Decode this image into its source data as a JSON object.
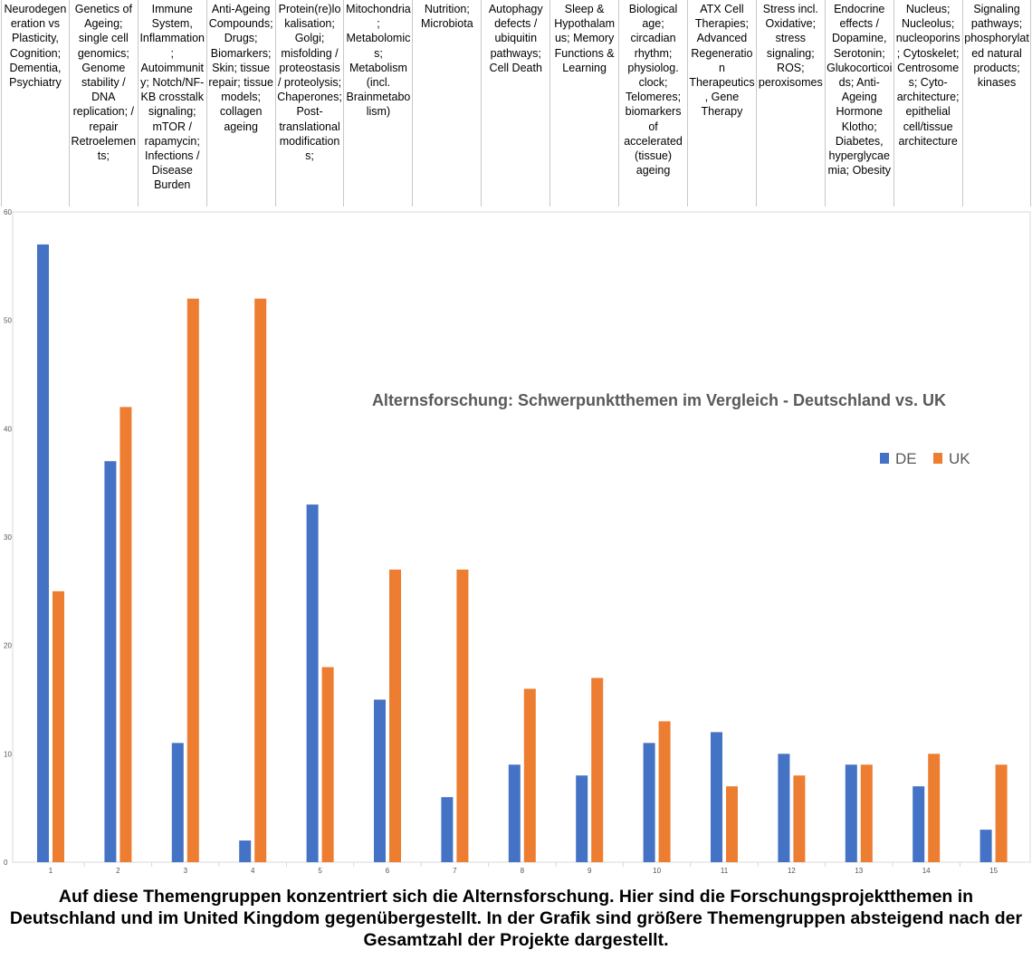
{
  "topics": [
    "Neurodegeneration vs Plasticity, Cognition; Dementia, Psychiatry",
    "Genetics of Ageing; single cell genomics; Genome stability / DNA replication; / repair Retroelements;",
    "Immune System, Inflammation; Autoimmunity; Notch/NF-KB crosstalk signaling; mTOR / rapamycin; Infections / Disease Burden",
    "Anti-Ageing Compounds; Drugs; Biomarkers; Skin; tissue repair; tissue models; collagen ageing",
    "Protein(re)lokalisation; Golgi; misfolding / proteostasis / proteolysis; Chaperones; Post-translational modifications;",
    "Mitochondria; Metabolomics; Metabolism (incl. Brainmetabolism)",
    "Nutrition; Microbiota",
    "Autophagy defects / ubiquitin pathways; Cell Death",
    "Sleep & Hypothalamus; Memory Functions & Learning",
    "Biological age; circadian rhythm; physiolog. clock; Telomeres; biomarkers of accelerated (tissue) ageing",
    "ATX Cell Therapies; Advanced Regeneration Therapeutics, Gene Therapy",
    "Stress incl. Oxidative; stress signaling; ROS; peroxisomes",
    "Endocrine effects / Dopamine, Serotonin; Glukocorticoids; Anti-Ageing Hormone Klotho; Diabetes, hyperglycaemia; Obesity",
    "Nucleus; Nucleolus; nucleoporins; Cytoskelet; Centrosomes; Cyto-architecture; epithelial cell/tissue architecture",
    "Signaling pathways; phosphorylated natural products; kinases"
  ],
  "chart_data": {
    "type": "bar",
    "title": "Alternsforschung: Schwerpunktthemen im Vergleich - Deutschland vs. UK",
    "categories": [
      "1",
      "2",
      "3",
      "4",
      "5",
      "6",
      "7",
      "8",
      "9",
      "10",
      "11",
      "12",
      "13",
      "14",
      "15"
    ],
    "series": [
      {
        "name": "DE",
        "color": "#4472C4",
        "values": [
          57,
          37,
          11,
          2,
          33,
          15,
          6,
          9,
          8,
          11,
          12,
          10,
          9,
          7,
          3
        ]
      },
      {
        "name": "UK",
        "color": "#ED7D31",
        "values": [
          25,
          42,
          52,
          52,
          18,
          27,
          27,
          16,
          17,
          13,
          7,
          8,
          9,
          10,
          9
        ]
      }
    ],
    "ylim": [
      0,
      60
    ],
    "yticks": [
      0,
      10,
      20,
      30,
      40,
      50,
      60
    ],
    "grid": false,
    "legend": "right"
  },
  "caption": "Auf diese Themengruppen konzentriert sich die Alternsforschung. Hier sind die Forschungsprojektthemen in Deutschland und im United Kingdom gegenübergestellt. In der Grafik sind größere Themengruppen absteigend nach der Gesamtzahl der Projekte dargestellt."
}
